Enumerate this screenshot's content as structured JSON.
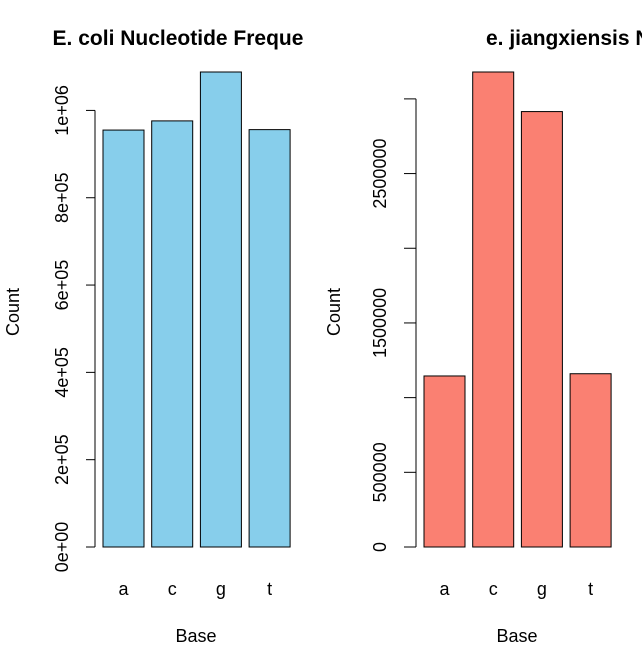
{
  "chart_data": [
    {
      "type": "bar",
      "title": "E. coli Nucleotide Freque",
      "xlabel": "Base",
      "ylabel": "Count",
      "categories": [
        "a",
        "c",
        "g",
        "t"
      ],
      "values": [
        955000,
        976000,
        1088000,
        956000
      ],
      "ylim": [
        0,
        1088000
      ],
      "yticks": [
        0,
        200000,
        400000,
        600000,
        800000,
        1000000
      ],
      "ytick_labels": [
        "0e+00",
        "2e+05",
        "4e+05",
        "6e+05",
        "8e+05",
        "1e+06"
      ],
      "bar_color": "#87CEEB",
      "grid": false
    },
    {
      "type": "bar",
      "title": "e. jiangxiensis Nucleotide Fre",
      "xlabel": "Base",
      "ylabel": "Count",
      "categories": [
        "a",
        "c",
        "g",
        "t"
      ],
      "values": [
        1145000,
        3180000,
        2915000,
        1160000
      ],
      "ylim": [
        0,
        3180000
      ],
      "yticks": [
        0,
        500000,
        1000000,
        1500000,
        2000000,
        2500000,
        3000000
      ],
      "ytick_labels": [
        "0",
        "500000",
        "",
        "1500000",
        "",
        "2500000",
        ""
      ],
      "bar_color": "#FA8072",
      "grid": false
    }
  ]
}
